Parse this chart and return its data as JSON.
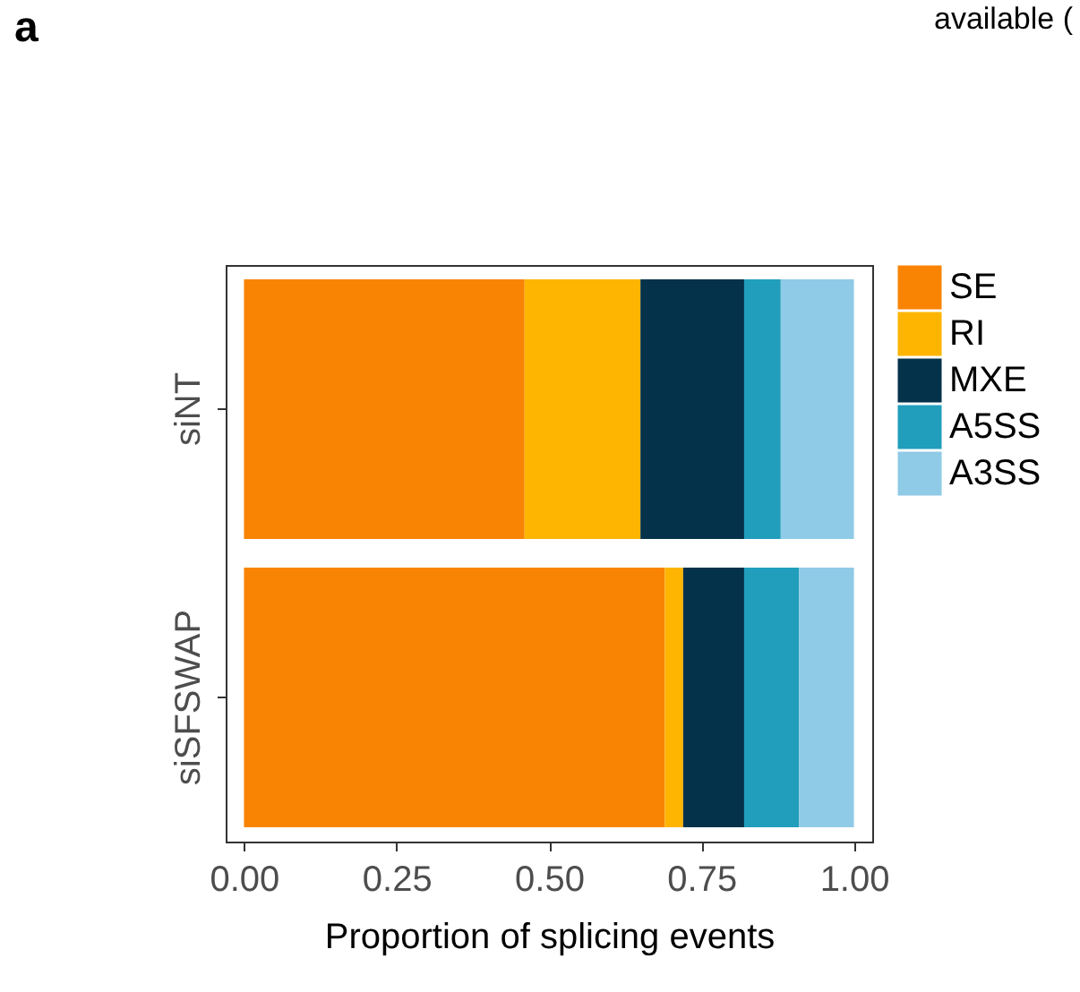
{
  "chart_data": {
    "type": "bar",
    "orientation": "horizontal",
    "stacked": true,
    "categories": [
      "siNT",
      "siSFSWAP"
    ],
    "series": [
      {
        "name": "SE",
        "color": "#f98404",
        "values": [
          0.46,
          0.69
        ]
      },
      {
        "name": "RI",
        "color": "#feb502",
        "values": [
          0.19,
          0.03
        ]
      },
      {
        "name": "MXE",
        "color": "#04324b",
        "values": [
          0.17,
          0.1
        ]
      },
      {
        "name": "A5SS",
        "color": "#219ebc",
        "values": [
          0.06,
          0.09
        ]
      },
      {
        "name": "A3SS",
        "color": "#8fcae6",
        "values": [
          0.12,
          0.09
        ]
      }
    ],
    "xlabel": "Proportion of splicing events",
    "xlim": [
      -0.03,
      1.03
    ],
    "xticks": [
      {
        "value": 0,
        "label": "0.00"
      },
      {
        "value": 0.25,
        "label": "0.25"
      },
      {
        "value": 0.5,
        "label": "0.50"
      },
      {
        "value": 0.75,
        "label": "0.75"
      },
      {
        "value": 1,
        "label": "1.00"
      }
    ],
    "grid": false,
    "legend": "right",
    "annotations": [
      "a",
      "available ("
    ]
  }
}
